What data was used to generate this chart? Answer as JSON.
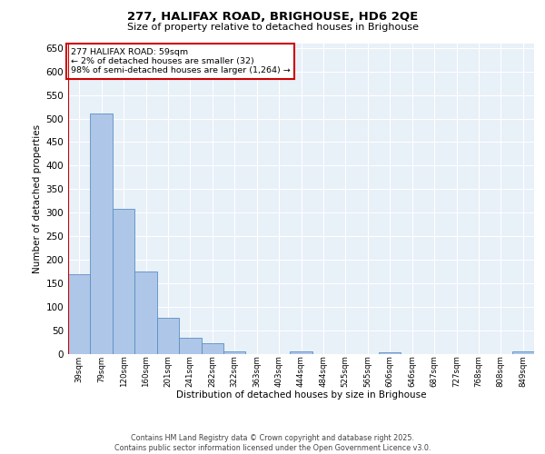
{
  "title1": "277, HALIFAX ROAD, BRIGHOUSE, HD6 2QE",
  "title2": "Size of property relative to detached houses in Brighouse",
  "xlabel": "Distribution of detached houses by size in Brighouse",
  "ylabel": "Number of detached properties",
  "bar_labels": [
    "39sqm",
    "79sqm",
    "120sqm",
    "160sqm",
    "201sqm",
    "241sqm",
    "282sqm",
    "322sqm",
    "363sqm",
    "403sqm",
    "444sqm",
    "484sqm",
    "525sqm",
    "565sqm",
    "606sqm",
    "646sqm",
    "687sqm",
    "727sqm",
    "768sqm",
    "808sqm",
    "849sqm"
  ],
  "bar_values": [
    170,
    510,
    308,
    175,
    77,
    35,
    23,
    5,
    0,
    0,
    5,
    0,
    0,
    0,
    3,
    0,
    0,
    0,
    0,
    0,
    5
  ],
  "bar_color": "#aec6e8",
  "bar_edge_color": "#5a8fc2",
  "bg_color": "#e8f0f8",
  "grid_color": "#ffffff",
  "vline_color": "#cc0000",
  "annotation_text": "277 HALIFAX ROAD: 59sqm\n← 2% of detached houses are smaller (32)\n98% of semi-detached houses are larger (1,264) →",
  "annotation_box_color": "#ffffff",
  "annotation_box_edge": "#cc0000",
  "footer_text": "Contains HM Land Registry data © Crown copyright and database right 2025.\nContains public sector information licensed under the Open Government Licence v3.0.",
  "ylim": [
    0,
    660
  ],
  "yticks": [
    0,
    50,
    100,
    150,
    200,
    250,
    300,
    350,
    400,
    450,
    500,
    550,
    600,
    650
  ]
}
